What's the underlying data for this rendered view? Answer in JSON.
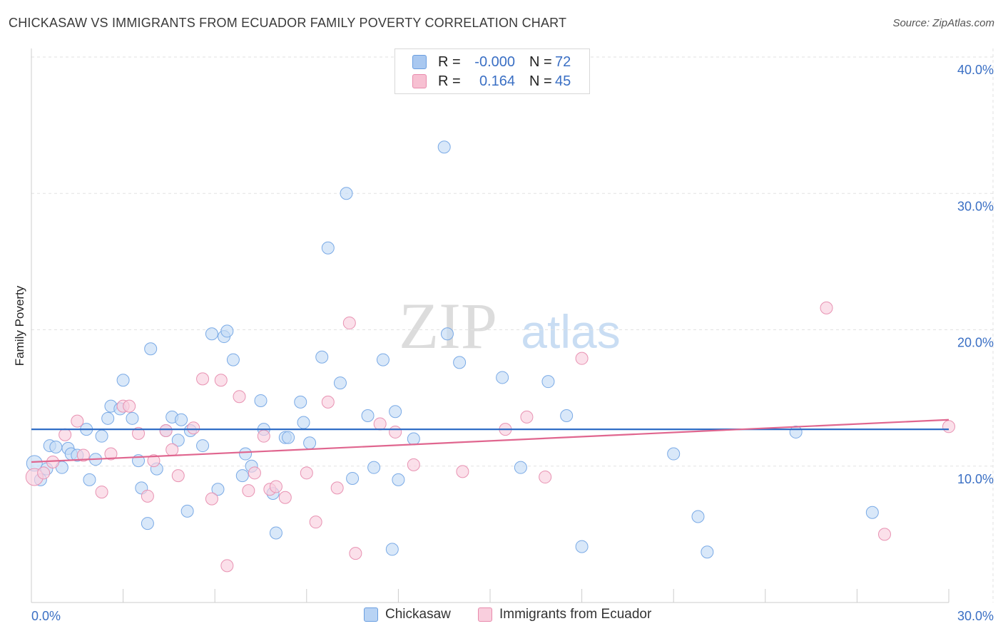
{
  "title": "CHICKASAW VS IMMIGRANTS FROM ECUADOR FAMILY POVERTY CORRELATION CHART",
  "source": "Source: ZipAtlas.com",
  "watermark": {
    "zip": "ZIP",
    "atlas": "atlas"
  },
  "legend": [
    {
      "r_label": "R =",
      "r_value": "-0.000",
      "n_label": "N =",
      "n_value": "72",
      "color": "#a9c8f0",
      "border": "#6a9ee0"
    },
    {
      "r_label": "R =",
      "r_value": "0.164",
      "n_label": "N =",
      "n_value": "45",
      "color": "#f7c0d2",
      "border": "#e88aac"
    }
  ],
  "bottom_legend": [
    {
      "label": "Chickasaw",
      "color": "#b8d3f4",
      "border": "#6a9ee0"
    },
    {
      "label": "Immigrants from Ecuador",
      "color": "#f9cedd",
      "border": "#e88aac"
    }
  ],
  "chart_data": {
    "type": "scatter",
    "title": "CHICKASAW VS IMMIGRANTS FROM ECUADOR FAMILY POVERTY CORRELATION CHART",
    "xlabel": "",
    "ylabel": "Family Poverty",
    "xlim": [
      0,
      30
    ],
    "ylim": [
      0,
      40
    ],
    "x_tick_labels": [
      "0.0%",
      "30.0%"
    ],
    "y_ticks": [
      10,
      20,
      30,
      40
    ],
    "y_tick_labels": [
      "10.0%",
      "20.0%",
      "30.0%",
      "40.0%"
    ],
    "grid": true,
    "legend_position": "top-center",
    "series": [
      {
        "name": "Chickasaw",
        "color": "#7aaae6",
        "fill": "#c5dbf6",
        "trend": {
          "x": [
            0,
            30
          ],
          "y": [
            12.7,
            12.7
          ],
          "color": "#2f6dc6"
        },
        "points": [
          [
            0.1,
            10.2
          ],
          [
            0.3,
            9.0
          ],
          [
            0.5,
            9.8
          ],
          [
            0.6,
            11.5
          ],
          [
            0.8,
            11.4
          ],
          [
            1.0,
            9.9
          ],
          [
            1.2,
            11.3
          ],
          [
            1.3,
            10.9
          ],
          [
            1.5,
            10.8
          ],
          [
            1.8,
            12.7
          ],
          [
            1.9,
            9.0
          ],
          [
            2.1,
            10.5
          ],
          [
            2.3,
            12.2
          ],
          [
            2.5,
            13.5
          ],
          [
            2.6,
            14.4
          ],
          [
            2.9,
            14.2
          ],
          [
            3.0,
            16.3
          ],
          [
            3.3,
            13.5
          ],
          [
            3.5,
            10.4
          ],
          [
            3.6,
            8.4
          ],
          [
            3.8,
            5.8
          ],
          [
            3.9,
            18.6
          ],
          [
            4.1,
            9.8
          ],
          [
            4.4,
            12.6
          ],
          [
            4.6,
            13.6
          ],
          [
            4.8,
            11.9
          ],
          [
            4.9,
            13.4
          ],
          [
            5.1,
            6.7
          ],
          [
            5.2,
            12.6
          ],
          [
            5.6,
            11.5
          ],
          [
            5.9,
            19.7
          ],
          [
            6.1,
            8.3
          ],
          [
            6.3,
            19.5
          ],
          [
            6.4,
            19.9
          ],
          [
            6.6,
            17.8
          ],
          [
            6.9,
            9.3
          ],
          [
            7.0,
            10.9
          ],
          [
            7.2,
            10.0
          ],
          [
            7.5,
            14.8
          ],
          [
            7.6,
            12.7
          ],
          [
            7.9,
            8.0
          ],
          [
            8.0,
            5.1
          ],
          [
            8.3,
            12.1
          ],
          [
            8.4,
            12.1
          ],
          [
            8.8,
            14.7
          ],
          [
            8.9,
            13.2
          ],
          [
            9.1,
            11.7
          ],
          [
            9.5,
            18.0
          ],
          [
            9.7,
            26.0
          ],
          [
            10.1,
            16.1
          ],
          [
            10.3,
            30.0
          ],
          [
            10.5,
            9.1
          ],
          [
            11.0,
            13.7
          ],
          [
            11.2,
            9.9
          ],
          [
            11.5,
            17.8
          ],
          [
            11.8,
            3.9
          ],
          [
            11.9,
            14.0
          ],
          [
            12.0,
            9.0
          ],
          [
            12.5,
            12.0
          ],
          [
            13.5,
            33.4
          ],
          [
            13.6,
            19.7
          ],
          [
            14.0,
            17.6
          ],
          [
            15.4,
            16.5
          ],
          [
            16.0,
            9.9
          ],
          [
            16.9,
            16.2
          ],
          [
            17.5,
            13.7
          ],
          [
            18.0,
            4.1
          ],
          [
            21.0,
            10.9
          ],
          [
            21.8,
            6.3
          ],
          [
            22.1,
            3.7
          ],
          [
            25.0,
            12.5
          ],
          [
            27.5,
            6.6
          ]
        ]
      },
      {
        "name": "Immigrants from Ecuador",
        "color": "#e892b2",
        "fill": "#f9d0de",
        "trend": {
          "x": [
            0,
            30
          ],
          "y": [
            10.3,
            13.4
          ],
          "color": "#e0668f"
        },
        "points": [
          [
            0.1,
            9.2
          ],
          [
            0.4,
            9.5
          ],
          [
            0.7,
            10.3
          ],
          [
            1.1,
            12.3
          ],
          [
            1.5,
            13.3
          ],
          [
            1.7,
            10.8
          ],
          [
            2.3,
            8.1
          ],
          [
            2.6,
            10.9
          ],
          [
            3.0,
            14.4
          ],
          [
            3.2,
            14.4
          ],
          [
            3.5,
            12.4
          ],
          [
            3.8,
            7.8
          ],
          [
            4.0,
            10.4
          ],
          [
            4.4,
            12.6
          ],
          [
            4.6,
            11.2
          ],
          [
            4.8,
            9.3
          ],
          [
            5.3,
            12.8
          ],
          [
            5.6,
            16.4
          ],
          [
            5.9,
            7.6
          ],
          [
            6.2,
            16.3
          ],
          [
            6.4,
            2.7
          ],
          [
            6.8,
            15.1
          ],
          [
            7.1,
            8.2
          ],
          [
            7.3,
            9.5
          ],
          [
            7.6,
            12.2
          ],
          [
            7.8,
            8.3
          ],
          [
            8.0,
            8.5
          ],
          [
            8.3,
            7.7
          ],
          [
            9.0,
            9.5
          ],
          [
            9.3,
            5.9
          ],
          [
            9.7,
            14.7
          ],
          [
            10.0,
            8.4
          ],
          [
            10.4,
            20.5
          ],
          [
            10.6,
            3.6
          ],
          [
            11.4,
            13.1
          ],
          [
            11.9,
            12.5
          ],
          [
            12.5,
            10.1
          ],
          [
            14.1,
            9.6
          ],
          [
            15.5,
            12.7
          ],
          [
            16.2,
            13.6
          ],
          [
            16.8,
            9.2
          ],
          [
            18.0,
            17.9
          ],
          [
            26.0,
            21.6
          ],
          [
            27.9,
            5.0
          ],
          [
            30.0,
            12.9
          ]
        ]
      }
    ]
  }
}
